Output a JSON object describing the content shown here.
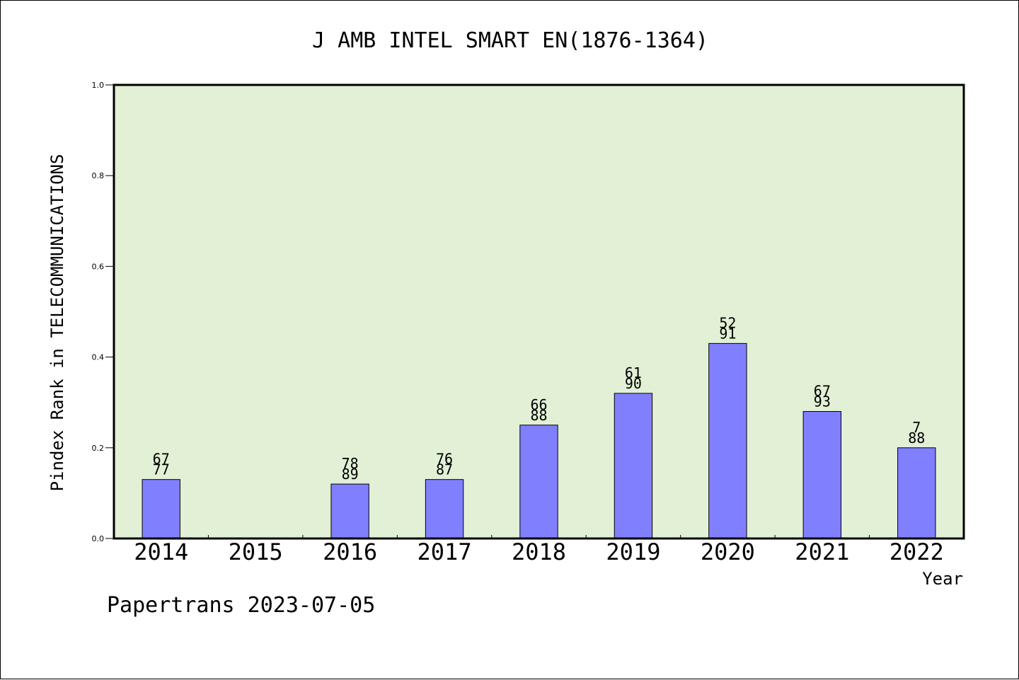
{
  "chart_data": {
    "type": "bar",
    "title": "J AMB INTEL SMART EN(1876-1364)",
    "xlabel": "Year",
    "ylabel": "Pindex Rank in TELECOMMUNICATIONS",
    "ylim": [
      0,
      1.0
    ],
    "yticks": [
      "0.0",
      "0.2",
      "0.4",
      "0.6",
      "0.8",
      "1.0"
    ],
    "categories": [
      "2014",
      "2015",
      "2016",
      "2017",
      "2018",
      "2019",
      "2020",
      "2021",
      "2022"
    ],
    "values": [
      0.13,
      null,
      0.12,
      0.13,
      0.25,
      0.32,
      0.43,
      0.28,
      0.2
    ],
    "labels_top": [
      "67",
      "",
      "78",
      "76",
      "66",
      "61",
      "52",
      "67",
      "7"
    ],
    "labels_bottom": [
      "77",
      "",
      "89",
      "87",
      "88",
      "90",
      "91",
      "93",
      "88"
    ],
    "grid": false,
    "legend": "none",
    "colors": {
      "plot_background": "#e2f0d6",
      "bar_fill": "#8080ff",
      "bar_stroke": "#000000"
    }
  },
  "footer": {
    "watermark": "Papertrans 2023-07-05"
  }
}
